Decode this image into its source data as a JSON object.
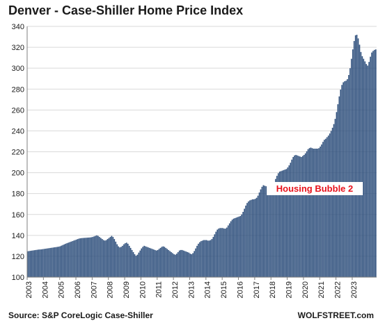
{
  "chart_data": {
    "type": "bar",
    "title": "Denver  - Case-Shiller Home Price Index",
    "source": "Source: S&P CoreLogic Case-Shiller",
    "watermark": "WOLFSTREET.com",
    "annotation": "Housing Bubble 2",
    "xlabel": "",
    "ylabel": "",
    "ylim": [
      100,
      340
    ],
    "yticks": [
      100,
      120,
      140,
      160,
      180,
      200,
      220,
      240,
      260,
      280,
      300,
      320,
      340
    ],
    "xticks": [
      "2003",
      "2004",
      "2005",
      "2006",
      "2007",
      "2008",
      "2009",
      "2010",
      "2011",
      "2012",
      "2013",
      "2014",
      "2015",
      "2016",
      "2017",
      "2018",
      "2019",
      "2020",
      "2021",
      "2022",
      "2023"
    ],
    "grid": "horizontal",
    "frequency": "monthly",
    "start": "2003-01",
    "bar_color": "#2e4f7c",
    "annotation_color": "#e8111b",
    "values": [
      124.8,
      125.0,
      125.2,
      125.4,
      125.6,
      125.8,
      126.0,
      126.2,
      126.4,
      126.5,
      126.6,
      126.8,
      127.0,
      127.2,
      127.4,
      127.6,
      127.8,
      128.0,
      128.2,
      128.4,
      128.6,
      128.8,
      129.0,
      129.2,
      129.6,
      130.2,
      130.8,
      131.4,
      132.0,
      132.5,
      133.0,
      133.5,
      134.0,
      134.5,
      135.0,
      135.5,
      136.0,
      136.5,
      137.0,
      137.2,
      137.4,
      137.5,
      137.6,
      137.7,
      137.8,
      137.9,
      138.0,
      138.2,
      138.5,
      139.0,
      139.5,
      140.0,
      139.5,
      138.5,
      137.5,
      136.5,
      135.5,
      135.0,
      135.5,
      136.5,
      137.5,
      138.5,
      139.5,
      138.5,
      136.5,
      134.0,
      131.5,
      129.5,
      128.5,
      129.0,
      130.0,
      131.5,
      132.5,
      133.0,
      132.0,
      130.0,
      128.0,
      126.0,
      124.0,
      122.0,
      120.5,
      121.5,
      123.5,
      125.5,
      127.5,
      129.0,
      130.0,
      129.5,
      129.0,
      128.5,
      128.0,
      127.5,
      127.0,
      126.5,
      126.0,
      125.5,
      126.0,
      127.0,
      128.0,
      129.0,
      129.5,
      129.0,
      128.0,
      127.0,
      126.0,
      125.0,
      124.0,
      123.0,
      122.0,
      121.5,
      122.5,
      124.0,
      125.5,
      126.0,
      126.0,
      125.5,
      125.0,
      124.5,
      124.0,
      123.5,
      122.5,
      122.0,
      123.0,
      125.0,
      127.5,
      130.0,
      132.0,
      133.5,
      134.5,
      135.0,
      135.5,
      135.5,
      135.5,
      135.0,
      135.0,
      135.5,
      136.5,
      138.5,
      141.0,
      143.5,
      145.5,
      146.5,
      147.0,
      147.0,
      147.0,
      146.5,
      146.5,
      147.5,
      149.5,
      151.5,
      153.5,
      155.0,
      156.0,
      156.5,
      157.0,
      157.5,
      158.0,
      158.5,
      160.0,
      162.5,
      165.5,
      168.5,
      171.0,
      172.5,
      173.5,
      174.0,
      174.5,
      174.5,
      175.0,
      176.0,
      178.0,
      181.0,
      184.0,
      186.5,
      188.0,
      187.5,
      187.0,
      186.5,
      186.5,
      187.0,
      188.0,
      189.0,
      191.0,
      194.0,
      197.0,
      199.5,
      201.0,
      201.5,
      202.0,
      202.5,
      203.0,
      203.5,
      205.0,
      207.0,
      209.5,
      212.5,
      215.0,
      216.5,
      217.0,
      216.5,
      216.0,
      215.5,
      215.0,
      216.0,
      217.0,
      218.5,
      220.5,
      222.5,
      223.5,
      224.0,
      223.5,
      223.0,
      223.0,
      223.0,
      223.0,
      223.5,
      225.0,
      227.0,
      229.5,
      231.5,
      232.5,
      234.0,
      235.5,
      237.5,
      240.0,
      243.0,
      246.5,
      251.5,
      258.0,
      265.5,
      273.0,
      279.5,
      284.0,
      286.5,
      287.5,
      288.0,
      289.5,
      293.5,
      300.0,
      309.0,
      318.0,
      326.0,
      331.5,
      332.0,
      328.5,
      322.5,
      315.5,
      311.5,
      309.0,
      306.5,
      304.0,
      302.5,
      306.0,
      311.0,
      315.0,
      316.5,
      317.5,
      318.0
    ]
  }
}
